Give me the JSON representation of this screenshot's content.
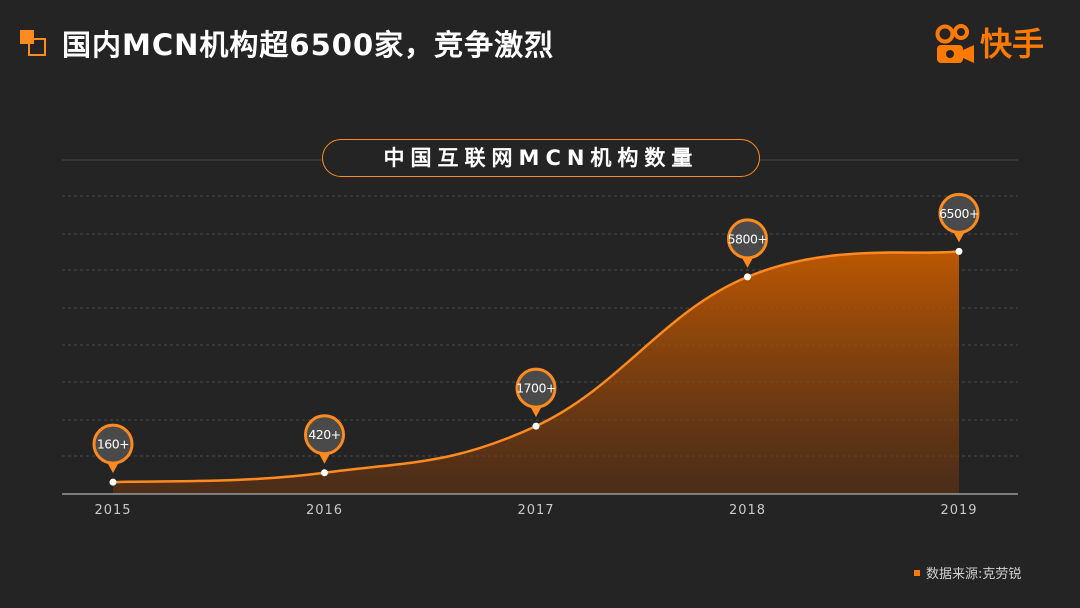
{
  "page": {
    "title": "国内MCN机构超6500家，竞争激烈",
    "logo_text": "快手",
    "source": "数据来源:克劳锐"
  },
  "colors": {
    "background": "#242424",
    "accent": "#ff8a1f",
    "brand": "#ff7a00",
    "bubble_fill": "#4a4a4a"
  },
  "icons": {
    "title_mark": "orange-squares-icon",
    "logo": "kuaishou-logo-icon",
    "source_bullet": "square-bullet-icon"
  },
  "chart_data": {
    "type": "area",
    "title": "中国互联网MCN机构数量",
    "categories": [
      "2015",
      "2016",
      "2017",
      "2018",
      "2019"
    ],
    "values": [
      160,
      420,
      1700,
      5800,
      6500
    ],
    "data_labels": [
      "160+",
      "420+",
      "1700+",
      "5800+",
      "6500+"
    ],
    "xlabel": "",
    "ylabel": "",
    "grid": true,
    "legend": "none"
  }
}
